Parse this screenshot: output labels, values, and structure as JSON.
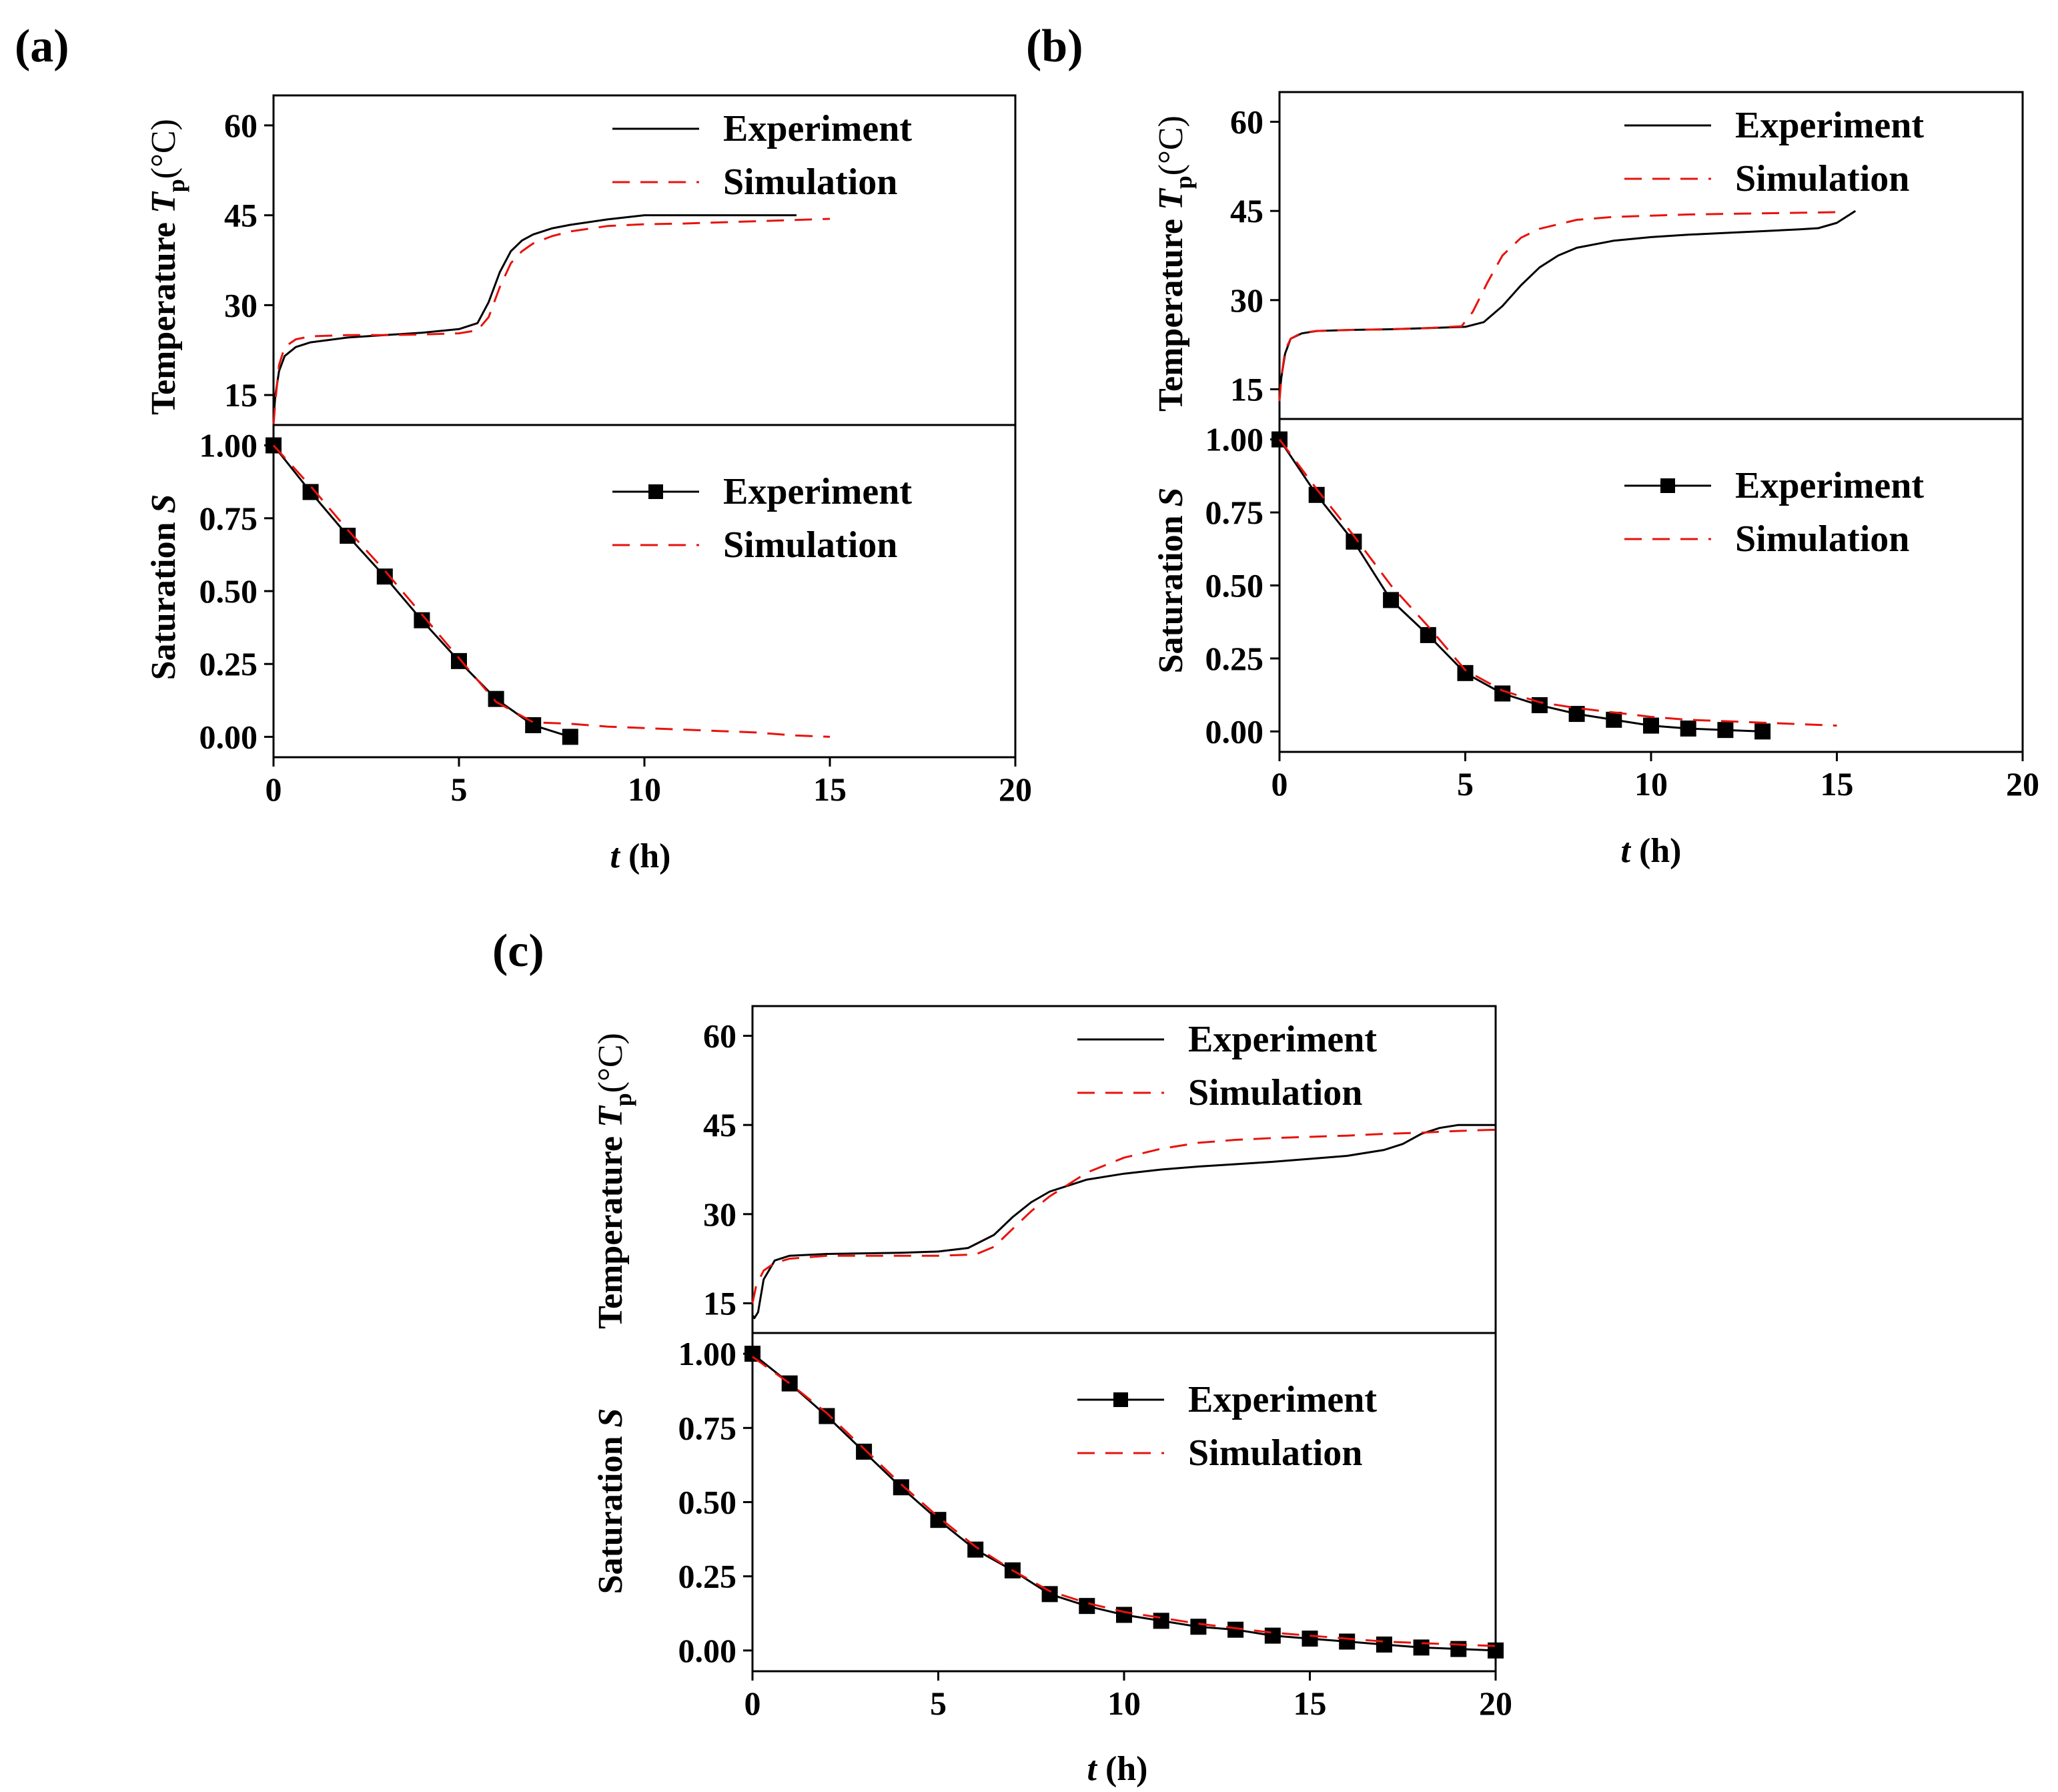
{
  "colors": {
    "experiment": "#000000",
    "simulation": "#e8120c",
    "axis": "#000000"
  },
  "shared": {
    "xlabel_italic": "t",
    "xlabel_unit": " (h)",
    "ylabel_temp_prefix": "Temperature ",
    "ylabel_temp_symbol": "T",
    "ylabel_temp_sub": "p",
    "ylabel_temp_unit": "(°C)",
    "ylabel_sat_prefix": "Saturation ",
    "ylabel_sat_symbol": "S"
  },
  "chart_data": [
    {
      "panel": "(a)",
      "type": "line",
      "xlim": [
        0,
        20
      ],
      "xticks": [
        0,
        5,
        10,
        15,
        20
      ],
      "temperature": {
        "ylim": [
          10,
          65
        ],
        "yticks": [
          15,
          30,
          45,
          60
        ],
        "legend_position": "top-right",
        "series": [
          {
            "name": "Experiment",
            "style": "solid",
            "x": [
              0,
              0.05,
              0.15,
              0.3,
              0.6,
              1,
              2,
              3,
              4,
              5,
              5.5,
              5.8,
              6.1,
              6.4,
              6.7,
              7,
              7.5,
              8,
              9,
              10,
              11,
              12,
              13,
              14.1
            ],
            "y": [
              11,
              15,
              19,
              21.5,
              23,
              23.8,
              24.6,
              25,
              25.4,
              26,
              27,
              30.5,
              35.5,
              39,
              40.8,
              41.8,
              42.8,
              43.4,
              44.3,
              45,
              45,
              45,
              45,
              45
            ]
          },
          {
            "name": "Simulation",
            "style": "dashed",
            "x": [
              0,
              0.05,
              0.15,
              0.3,
              0.6,
              1,
              2,
              3,
              4,
              5,
              5.5,
              5.8,
              6.1,
              6.4,
              6.7,
              7,
              7.5,
              8,
              9,
              10,
              11,
              12,
              13,
              14,
              15
            ],
            "y": [
              10,
              14,
              20,
              23,
              24.3,
              24.8,
              25,
              25,
              25.1,
              25.3,
              25.8,
              28,
              33,
              37,
              39,
              40.3,
              41.5,
              42.3,
              43.2,
              43.5,
              43.6,
              43.8,
              44,
              44.2,
              44.4
            ]
          }
        ]
      },
      "saturation": {
        "ylim": [
          -0.07,
          1.07
        ],
        "yticks": [
          0.0,
          0.25,
          0.5,
          0.75,
          1.0
        ],
        "ytick_labels": [
          "0.00",
          "0.25",
          "0.50",
          "0.75",
          "1.00"
        ],
        "legend_position": "top-right",
        "series": [
          {
            "name": "Experiment",
            "style": "solid-square-markers",
            "x": [
              0,
              1,
              2,
              3,
              4,
              5,
              6,
              7,
              8
            ],
            "y": [
              1.0,
              0.84,
              0.69,
              0.55,
              0.4,
              0.26,
              0.13,
              0.04,
              0.0
            ]
          },
          {
            "name": "Simulation",
            "style": "dashed",
            "x": [
              0,
              1,
              2,
              3,
              4,
              5,
              6,
              7,
              8,
              9,
              10,
              11,
              12,
              13,
              14,
              15
            ],
            "y": [
              1.0,
              0.86,
              0.71,
              0.57,
              0.42,
              0.27,
              0.12,
              0.05,
              0.045,
              0.035,
              0.03,
              0.025,
              0.02,
              0.015,
              0.005,
              0.0
            ]
          }
        ]
      }
    },
    {
      "panel": "(b)",
      "type": "line",
      "xlim": [
        0,
        20
      ],
      "xticks": [
        0,
        5,
        10,
        15,
        20
      ],
      "temperature": {
        "ylim": [
          10,
          65
        ],
        "yticks": [
          15,
          30,
          45,
          60
        ],
        "legend_position": "top-right",
        "series": [
          {
            "name": "Experiment",
            "style": "solid",
            "x": [
              0,
              0.05,
              0.15,
              0.3,
              0.6,
              1,
              2,
              3,
              4,
              5,
              5.5,
              6,
              6.5,
              7,
              7.5,
              8,
              9,
              10,
              11,
              12,
              13,
              14,
              14.5,
              15,
              15.5
            ],
            "y": [
              14,
              17,
              21,
              23.5,
              24.4,
              24.8,
              25,
              25.1,
              25.3,
              25.5,
              26.3,
              29,
              32.5,
              35.5,
              37.5,
              38.8,
              40,
              40.6,
              41,
              41.3,
              41.6,
              41.9,
              42.1,
              43,
              45
            ]
          },
          {
            "name": "Simulation",
            "style": "dashed",
            "x": [
              0,
              0.05,
              0.15,
              0.3,
              0.6,
              1,
              2,
              3,
              4,
              4.9,
              5.2,
              5.6,
              6,
              6.5,
              7,
              8,
              9,
              10,
              11,
              12,
              13,
              14,
              15
            ],
            "y": [
              13,
              17,
              21.5,
              23.5,
              24.5,
              24.8,
              25,
              25.1,
              25.3,
              25.6,
              28,
              33,
              37.5,
              40.5,
              42,
              43.5,
              44,
              44.2,
              44.4,
              44.5,
              44.6,
              44.7,
              44.8
            ]
          }
        ]
      },
      "saturation": {
        "ylim": [
          -0.07,
          1.07
        ],
        "yticks": [
          0.0,
          0.25,
          0.5,
          0.75,
          1.0
        ],
        "ytick_labels": [
          "0.00",
          "0.25",
          "0.50",
          "0.75",
          "1.00"
        ],
        "legend_position": "top-right",
        "series": [
          {
            "name": "Experiment",
            "style": "solid-square-markers",
            "x": [
              0,
              1,
              2,
              3,
              4,
              5,
              6,
              7,
              8,
              9,
              10,
              11,
              12,
              13
            ],
            "y": [
              1.0,
              0.81,
              0.65,
              0.45,
              0.33,
              0.2,
              0.13,
              0.09,
              0.06,
              0.04,
              0.02,
              0.01,
              0.005,
              0.0
            ]
          },
          {
            "name": "Simulation",
            "style": "dashed",
            "x": [
              0,
              1,
              2,
              3,
              4,
              5,
              6,
              7,
              8,
              9,
              10,
              11,
              12,
              13,
              14,
              15
            ],
            "y": [
              1.0,
              0.83,
              0.67,
              0.5,
              0.36,
              0.21,
              0.14,
              0.1,
              0.08,
              0.065,
              0.05,
              0.04,
              0.035,
              0.03,
              0.025,
              0.02
            ]
          }
        ]
      }
    },
    {
      "panel": "(c)",
      "type": "line",
      "xlim": [
        0,
        20
      ],
      "xticks": [
        0,
        5,
        10,
        15,
        20
      ],
      "temperature": {
        "ylim": [
          10,
          65
        ],
        "yticks": [
          15,
          30,
          45,
          60
        ],
        "legend_position": "top-right",
        "series": [
          {
            "name": "Experiment",
            "style": "solid",
            "x": [
              0,
              0.05,
              0.15,
              0.3,
              0.6,
              1,
              2,
              3,
              4,
              5,
              5.8,
              6.5,
              7,
              7.5,
              8,
              9,
              10,
              11,
              12,
              13,
              14,
              15,
              16,
              17,
              17.5,
              18,
              18.5,
              19,
              20
            ],
            "y": [
              13,
              12.5,
              13.5,
              19,
              22.2,
              23,
              23.3,
              23.4,
              23.5,
              23.7,
              24.3,
              26.5,
              29.5,
              32,
              33.8,
              35.8,
              36.8,
              37.5,
              38,
              38.4,
              38.8,
              39.3,
              39.8,
              40.8,
              41.8,
              43.5,
              44.5,
              45,
              45
            ]
          },
          {
            "name": "Simulation",
            "style": "dashed",
            "x": [
              0,
              0.1,
              0.3,
              0.6,
              1,
              2,
              3,
              4,
              5,
              6,
              6.5,
              7,
              7.5,
              8,
              8.5,
              9,
              10,
              11,
              12,
              13,
              14,
              15,
              16,
              17,
              18,
              19,
              20
            ],
            "y": [
              15,
              18,
              20.5,
              21.8,
              22.5,
              23,
              23,
              23,
              23,
              23.2,
              24.5,
              27.5,
              30.5,
              33,
              35,
              37,
              39.5,
              41,
              42,
              42.5,
              42.8,
              43,
              43.2,
              43.5,
              43.7,
              44,
              44.2
            ]
          }
        ]
      },
      "saturation": {
        "ylim": [
          -0.07,
          1.07
        ],
        "yticks": [
          0.0,
          0.25,
          0.5,
          0.75,
          1.0
        ],
        "ytick_labels": [
          "0.00",
          "0.25",
          "0.50",
          "0.75",
          "1.00"
        ],
        "legend_position": "top-right",
        "series": [
          {
            "name": "Experiment",
            "style": "solid-square-markers",
            "x": [
              0,
              1,
              2,
              3,
              4,
              5,
              6,
              7,
              8,
              9,
              10,
              11,
              12,
              13,
              14,
              15,
              16,
              17,
              18,
              19,
              20
            ],
            "y": [
              1.0,
              0.9,
              0.79,
              0.67,
              0.55,
              0.44,
              0.34,
              0.27,
              0.19,
              0.15,
              0.12,
              0.1,
              0.08,
              0.07,
              0.05,
              0.04,
              0.03,
              0.02,
              0.01,
              0.005,
              0.0
            ]
          },
          {
            "name": "Simulation",
            "style": "dashed",
            "x": [
              0,
              1,
              2,
              3,
              4,
              5,
              6,
              7,
              8,
              9,
              10,
              11,
              12,
              13,
              14,
              15,
              16,
              17,
              18,
              19,
              20
            ],
            "y": [
              0.99,
              0.9,
              0.8,
              0.68,
              0.56,
              0.45,
              0.35,
              0.27,
              0.2,
              0.16,
              0.13,
              0.11,
              0.09,
              0.075,
              0.06,
              0.05,
              0.04,
              0.03,
              0.025,
              0.02,
              0.015
            ]
          }
        ]
      }
    }
  ]
}
